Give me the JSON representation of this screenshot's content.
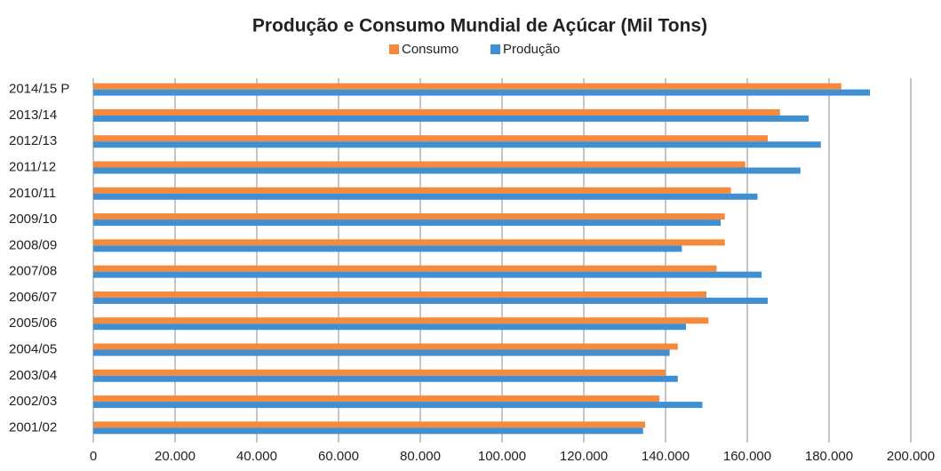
{
  "chart_data": {
    "type": "hbar",
    "title": "Produção e Consumo Mundial de Açúcar (Mil Tons)",
    "categories": [
      "2014/15 P",
      "2013/14",
      "2012/13",
      "2011/12",
      "2010/11",
      "2009/10",
      "2008/09",
      "2007/08",
      "2006/07",
      "2005/06",
      "2004/05",
      "2003/04",
      "2002/03",
      "2001/02"
    ],
    "series": [
      {
        "name": "Consumo",
        "color": "#f58a3c",
        "values": [
          183000,
          168000,
          165000,
          159500,
          156000,
          154500,
          154500,
          152500,
          150000,
          150500,
          143000,
          140000,
          138500,
          135000
        ]
      },
      {
        "name": "Produção",
        "color": "#3f8fd2",
        "values": [
          190000,
          175000,
          178000,
          173000,
          162500,
          153500,
          144000,
          163500,
          165000,
          145000,
          141000,
          143000,
          149000,
          134500
        ]
      }
    ],
    "xlim": [
      0,
      200000
    ],
    "xticks": [
      0,
      {
        "value": 20000,
        "label": "20.000"
      },
      {
        "value": 40000,
        "label": "40.000"
      },
      {
        "value": 60000,
        "label": "60.000"
      },
      {
        "value": 80000,
        "label": "80.000"
      },
      {
        "value": 100000,
        "label": "100.000"
      },
      {
        "value": 120000,
        "label": "120.000"
      },
      {
        "value": 140000,
        "label": "140.000"
      },
      {
        "value": 160000,
        "label": "160.000"
      },
      {
        "value": 180000,
        "label": "180.000"
      },
      {
        "value": 200000,
        "label": "200.000"
      }
    ],
    "grid": true
  }
}
